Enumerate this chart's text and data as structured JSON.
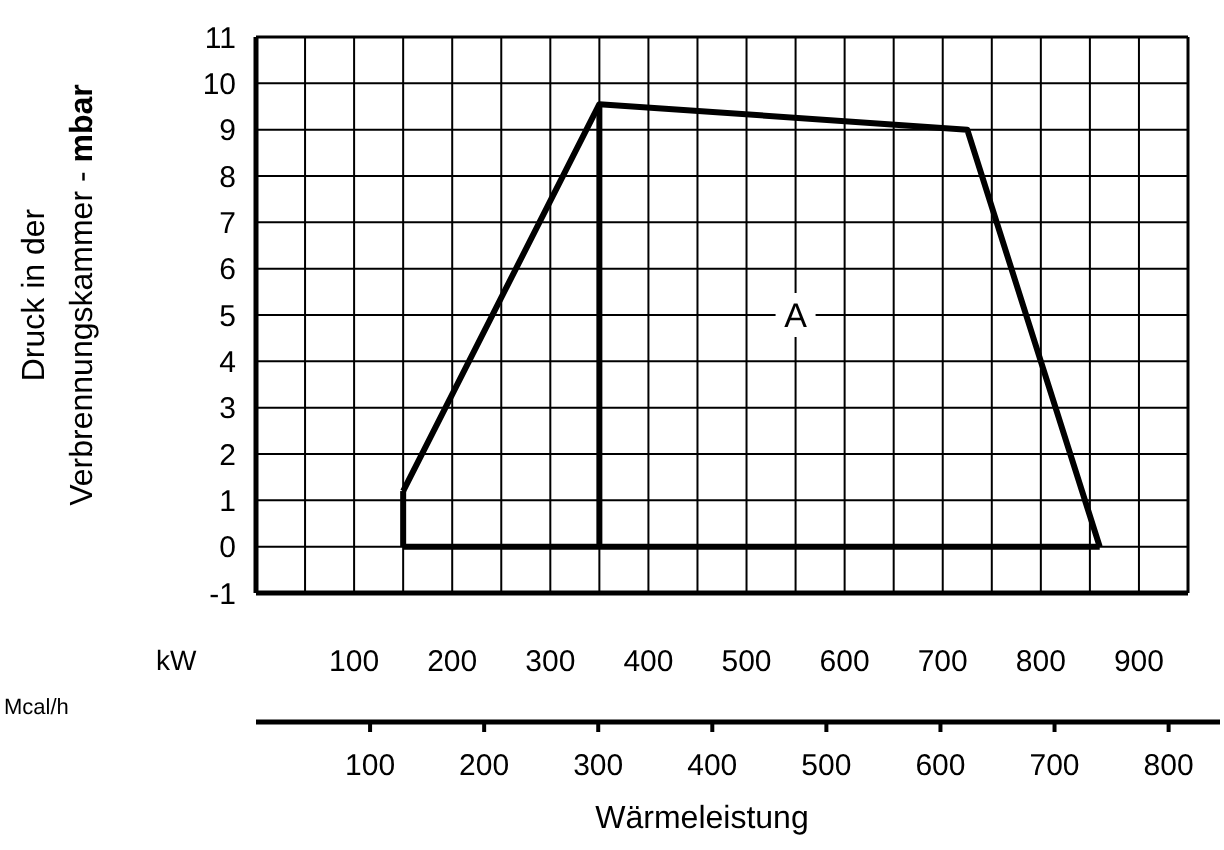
{
  "chart_data": {
    "type": "line",
    "ylabel": "Druck in der\nVerbrennungskammer - mbar",
    "xlabel": "Wärmeleistung",
    "x2label": "Mcal/h",
    "xlim": [
      0,
      950
    ],
    "xticks": [
      {
        "value": 0,
        "label": null
      },
      {
        "value": 50,
        "label": null
      },
      100,
      {
        "value": 150,
        "label": null
      },
      200,
      {
        "value": 250,
        "label": null
      },
      300,
      {
        "value": 350,
        "label": null
      },
      400,
      {
        "value": 450,
        "label": null
      },
      500,
      {
        "value": 550,
        "label": null
      },
      600,
      {
        "value": 650,
        "label": null
      },
      700,
      {
        "value": 750,
        "label": null
      },
      800,
      {
        "value": 850,
        "label": null
      },
      900
    ],
    "x2lim": [
      0,
      817
    ],
    "x2ticks": [
      100,
      200,
      300,
      400,
      500,
      600,
      700,
      800
    ],
    "ylim": [
      -1,
      11
    ],
    "yticks": [
      -1,
      0,
      1,
      2,
      3,
      4,
      5,
      6,
      7,
      8,
      9,
      10,
      11
    ],
    "grid": true,
    "marker": "none",
    "line_style": "solid",
    "series": [
      {
        "color": "#000000",
        "x": [
          150,
          350,
          725,
          860
        ],
        "values": [
          1.2,
          9.55,
          9.0,
          0
        ]
      },
      {
        "color": "#000000",
        "x": [
          150,
          860
        ],
        "values": [
          0,
          0
        ]
      },
      {
        "color": "#000000",
        "x": [
          150,
          150
        ],
        "values": [
          0,
          1.2
        ]
      },
      {
        "color": "#000000",
        "x": [
          350,
          350
        ],
        "values": [
          0,
          9.55
        ]
      }
    ],
    "annotations": [
      {
        "text": "A",
        "x": 550,
        "y": 5
      },
      "kW"
    ]
  }
}
